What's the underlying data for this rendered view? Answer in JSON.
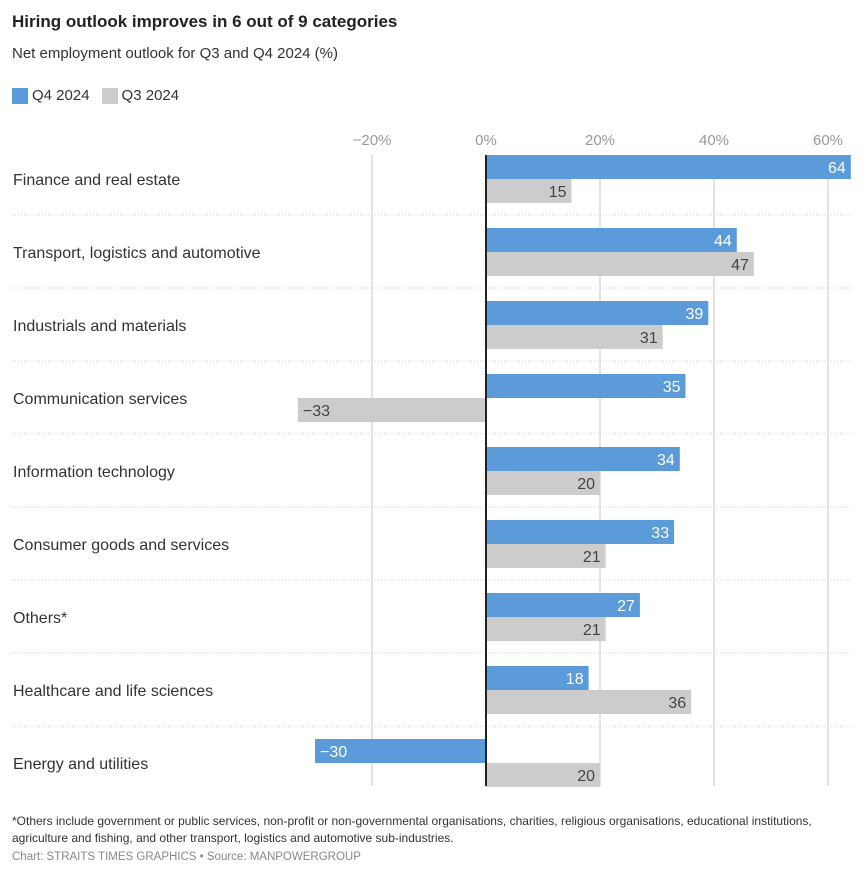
{
  "chart_data": {
    "type": "bar",
    "orientation": "horizontal",
    "title": "Hiring outlook improves in 6 out of 9 categories",
    "subtitle": "Net employment outlook for Q3 and Q4 2024 (%)",
    "categories": [
      "Finance and real estate",
      "Transport, logistics and automotive",
      "Industrials and materials",
      "Communication services",
      "Information technology",
      "Consumer goods and services",
      "Others*",
      "Healthcare and life sciences",
      "Energy and utilities"
    ],
    "series": [
      {
        "name": "Q4 2024",
        "color": "#5b9bd9",
        "values": [
          64,
          44,
          39,
          35,
          34,
          33,
          27,
          18,
          -30
        ]
      },
      {
        "name": "Q3 2024",
        "color": "#cccccc",
        "values": [
          15,
          47,
          31,
          -33,
          20,
          21,
          21,
          36,
          20
        ]
      }
    ],
    "xticks": [
      -20,
      0,
      20,
      40,
      60
    ],
    "xtick_labels": [
      "−20%",
      "0%",
      "20%",
      "40%",
      "60%"
    ],
    "xlim": [
      -34,
      64
    ],
    "grid": true,
    "legend": "top-left"
  },
  "footnote": "*Others include government or public services, non-profit or non-governmental organisations, charities, religious organisations, educational institutions, agriculture and fishing, and other transport, logistics and automotive sub-industries.",
  "credit": "Chart: STRAITS TIMES GRAPHICS • Source: MANPOWERGROUP"
}
